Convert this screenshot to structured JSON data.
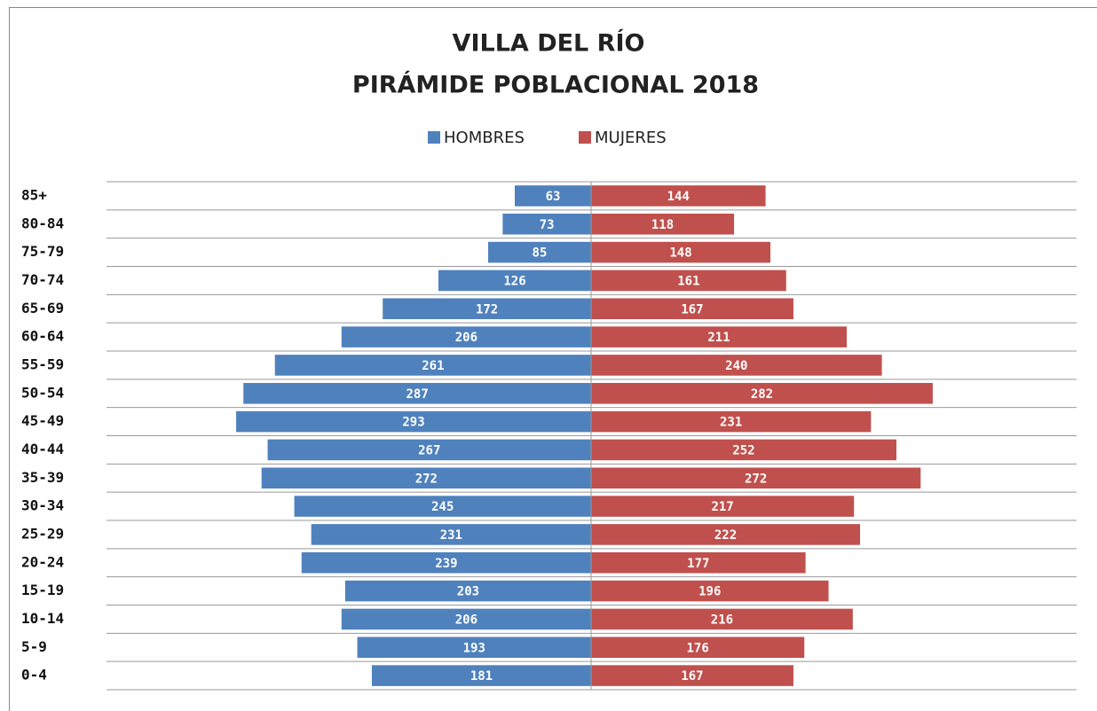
{
  "chart_data": {
    "type": "pyramid",
    "title": "VILLA DEL RÍO",
    "subtitle": "PIRÁMIDE POBLACIONAL 2018",
    "categories": [
      "85+",
      "80-84",
      "75-79",
      "70-74",
      "65-69",
      "60-64",
      "55-59",
      "50-54",
      "45-49",
      "40-44",
      "35-39",
      "30-34",
      "25-29",
      "20-24",
      "15-19",
      "10-14",
      "5-9",
      "0-4"
    ],
    "series": [
      {
        "name": "HOMBRES",
        "color": "#4f81bd",
        "values": [
          63,
          73,
          85,
          126,
          172,
          206,
          261,
          287,
          293,
          267,
          272,
          245,
          231,
          239,
          203,
          206,
          193,
          181
        ]
      },
      {
        "name": "MUJERES",
        "color": "#c0504d",
        "values": [
          144,
          118,
          148,
          161,
          167,
          211,
          240,
          282,
          231,
          252,
          272,
          217,
          222,
          177,
          196,
          216,
          176,
          167
        ]
      }
    ],
    "xlim": [
      0,
      400
    ],
    "legend": "top"
  }
}
